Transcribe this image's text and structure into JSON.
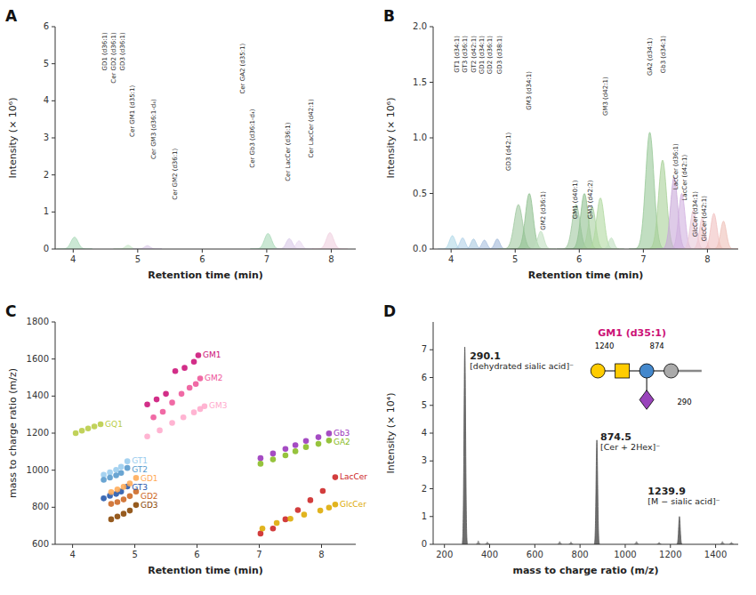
{
  "chart_data": [
    {
      "type": "peak",
      "title": "A",
      "x_label": "Retention time (min)",
      "y_label": "Intensity (× 10⁶)",
      "x": [
        4.02,
        4.85,
        5.15,
        7.02,
        7.35,
        7.5,
        7.98
      ],
      "values": [
        0.32,
        0.1,
        0.09,
        0.42,
        0.28,
        0.22,
        0.44
      ],
      "widths": [
        0.055,
        0.045,
        0.045,
        0.055,
        0.048,
        0.045,
        0.055
      ],
      "colors": [
        "#a8d8b8",
        "#c8e8c8",
        "#d8c8e8",
        "#a8d8b8",
        "#d8c8e8",
        "#e8d8f0",
        "#f0d0e0"
      ],
      "xlim": [
        3.72,
        8.38
      ],
      "ylim": [
        0,
        6
      ],
      "xticks": [
        4,
        5,
        6,
        7,
        8
      ],
      "yticks": [
        0,
        1,
        2,
        3,
        4,
        5,
        6
      ],
      "grid": false,
      "annotations": [
        {
          "text": "GD1 (d36:1)",
          "x": 4.44,
          "y": 5.85
        },
        {
          "text": "Cer GD2 (d36:1)",
          "x": 4.58,
          "y": 5.85
        },
        {
          "text": "GD3 (d36:1)",
          "x": 4.72,
          "y": 5.85
        },
        {
          "text": "Cer GM1 (d35:1)",
          "x": 4.86,
          "y": 4.42
        },
        {
          "text": "Cer GM3 (d36:1-d₄)",
          "x": 5.2,
          "y": 4.05
        },
        {
          "text": "Cer GM2 (d36:1)",
          "x": 5.52,
          "y": 2.72
        },
        {
          "text": "Cer GA2 (d35:1)",
          "x": 6.58,
          "y": 5.55
        },
        {
          "text": "Cer Gb3 (d36:1-d₄)",
          "x": 6.72,
          "y": 3.78
        },
        {
          "text": "Cer LacCer (d36:1)",
          "x": 7.28,
          "y": 3.42
        },
        {
          "text": "Cer LacCer (d42:1)",
          "x": 7.63,
          "y": 4.05
        }
      ]
    },
    {
      "type": "peak",
      "title": "B",
      "x_label": "Retention time (min)",
      "y_label": "Intensity (× 10⁶)",
      "x": [
        4.02,
        4.18,
        4.35,
        4.52,
        4.72,
        5.05,
        5.22,
        5.4,
        5.95,
        6.08,
        6.2,
        6.33,
        6.5,
        7.1,
        7.3,
        7.48,
        7.6,
        7.78,
        7.92,
        8.1,
        8.25
      ],
      "values": [
        0.12,
        0.1,
        0.09,
        0.08,
        0.09,
        0.4,
        0.5,
        0.16,
        0.4,
        0.5,
        0.38,
        0.46,
        0.1,
        1.05,
        0.8,
        0.65,
        0.5,
        0.35,
        0.28,
        0.32,
        0.25
      ],
      "widths": [
        0.045,
        0.042,
        0.04,
        0.04,
        0.04,
        0.065,
        0.06,
        0.048,
        0.06,
        0.058,
        0.055,
        0.058,
        0.04,
        0.065,
        0.062,
        0.055,
        0.05,
        0.048,
        0.045,
        0.048,
        0.045
      ],
      "colors": [
        "#b0d8e8",
        "#b0d0e8",
        "#a8c8e0",
        "#a8c0e0",
        "#a0b8d8",
        "#a0c8a0",
        "#90c090",
        "#c0e0c0",
        "#a0c8a0",
        "#90c090",
        "#a8d0a0",
        "#b0d8a0",
        "#c0e0c0",
        "#98c898",
        "#a8d098",
        "#c8a8d8",
        "#d0b0e0",
        "#e8c8d8",
        "#f0c8d0",
        "#f0c0c0",
        "#eec0b8"
      ],
      "xlim": [
        3.72,
        8.48
      ],
      "ylim": [
        0,
        2.0
      ],
      "xticks": [
        4,
        5,
        6,
        7,
        8
      ],
      "yticks": [
        {
          "value": 0,
          "label": "0.0"
        },
        {
          "value": 0.5,
          "label": "0.5"
        },
        {
          "value": 1,
          "label": "1.0"
        },
        {
          "value": 1.5,
          "label": "1.5"
        },
        {
          "value": 2,
          "label": "2.0"
        }
      ],
      "grid": false,
      "annotations": [
        {
          "text": "GT1 (d34:1)",
          "x": 4.04,
          "y": 1.92
        },
        {
          "text": "GT3 (d36:1)",
          "x": 4.17,
          "y": 1.92
        },
        {
          "text": "GT2 (d42:1)",
          "x": 4.3,
          "y": 1.92
        },
        {
          "text": "GD1 (d34:1)",
          "x": 4.43,
          "y": 1.92
        },
        {
          "text": "GD2 (d36:1)",
          "x": 4.56,
          "y": 1.92
        },
        {
          "text": "GD3 (d38:1)",
          "x": 4.7,
          "y": 1.92
        },
        {
          "text": "GD3 (d42:1)",
          "x": 4.84,
          "y": 1.05
        },
        {
          "text": "GM3 (d34:1)",
          "x": 5.16,
          "y": 1.6
        },
        {
          "text": "GM2 (d36:1)",
          "x": 5.38,
          "y": 0.52
        },
        {
          "text": "GM1 (d40:1)",
          "x": 5.88,
          "y": 0.62
        },
        {
          "text": "GM3 (d42:2)",
          "x": 6.12,
          "y": 0.62
        },
        {
          "text": "GM3 (d42:1)",
          "x": 6.36,
          "y": 1.55
        },
        {
          "text": "GA2 (d34:1)",
          "x": 7.05,
          "y": 1.9
        },
        {
          "text": "Gb3 (d34:1)",
          "x": 7.26,
          "y": 1.92
        },
        {
          "text": "LacCer (d36:1)",
          "x": 7.46,
          "y": 0.95
        },
        {
          "text": "LacCer (d42:1)",
          "x": 7.59,
          "y": 0.85
        },
        {
          "text": "GlcCer (d34:1)",
          "x": 7.76,
          "y": 0.52
        },
        {
          "text": "GlcCer (d42:1)",
          "x": 7.9,
          "y": 0.48
        }
      ]
    },
    {
      "type": "scatter",
      "title": "C",
      "x_label": "Retention time (min)",
      "y_label": "mass to charge ratio (m/z)",
      "series": [
        {
          "name": "GQ1",
          "color": "#b8cc44",
          "x": [
            4.05,
            4.15,
            4.25,
            4.35,
            4.45
          ],
          "values": [
            1200,
            1213,
            1225,
            1236,
            1248
          ]
        },
        {
          "name": "GT1",
          "color": "#99ccee",
          "x": [
            4.5,
            4.6,
            4.7,
            4.78,
            4.88
          ],
          "values": [
            975,
            988,
            1002,
            1018,
            1048
          ]
        },
        {
          "name": "GT2",
          "color": "#5599cc",
          "x": [
            4.5,
            4.6,
            4.7,
            4.78,
            4.88
          ],
          "values": [
            948,
            960,
            972,
            985,
            1012
          ]
        },
        {
          "name": "GT3",
          "color": "#2255aa",
          "x": [
            4.5,
            4.6,
            4.7,
            4.78,
            4.88
          ],
          "values": [
            848,
            862,
            872,
            885,
            912
          ]
        },
        {
          "name": "GD1",
          "color": "#ffaa55",
          "x": [
            4.62,
            4.72,
            4.82,
            4.92,
            5.02
          ],
          "values": [
            882,
            896,
            910,
            928,
            958
          ]
        },
        {
          "name": "GD2",
          "color": "#cc6622",
          "x": [
            4.62,
            4.72,
            4.82,
            4.92,
            5.02
          ],
          "values": [
            818,
            828,
            842,
            860,
            885
          ]
        },
        {
          "name": "GD3",
          "color": "#884400",
          "x": [
            4.62,
            4.72,
            4.82,
            4.92,
            5.02
          ],
          "values": [
            735,
            750,
            765,
            782,
            812
          ]
        },
        {
          "name": "GM1",
          "color": "#cc1177",
          "x": [
            5.2,
            5.35,
            5.5,
            5.65,
            5.8,
            5.95,
            6.02
          ],
          "values": [
            1355,
            1382,
            1412,
            1535,
            1552,
            1585,
            1620
          ]
        },
        {
          "name": "GM2",
          "color": "#ee5599",
          "x": [
            5.3,
            5.45,
            5.6,
            5.75,
            5.88,
            5.98,
            6.05
          ],
          "values": [
            1285,
            1315,
            1365,
            1412,
            1445,
            1465,
            1495
          ]
        },
        {
          "name": "GM3",
          "color": "#ffaacc",
          "x": [
            5.2,
            5.4,
            5.6,
            5.78,
            5.95,
            6.05,
            6.12
          ],
          "values": [
            1182,
            1215,
            1255,
            1285,
            1312,
            1330,
            1345
          ]
        },
        {
          "name": "Gb3",
          "color": "#9933bb",
          "x": [
            7.02,
            7.22,
            7.42,
            7.58,
            7.75,
            7.95,
            8.12
          ],
          "values": [
            1065,
            1090,
            1115,
            1135,
            1158,
            1178,
            1198
          ]
        },
        {
          "name": "GA2",
          "color": "#88bb22",
          "x": [
            7.02,
            7.22,
            7.42,
            7.58,
            7.75,
            7.95,
            8.12
          ],
          "values": [
            1035,
            1058,
            1080,
            1102,
            1125,
            1142,
            1160
          ]
        },
        {
          "name": "LacCer",
          "color": "#cc2222",
          "x": [
            7.02,
            7.22,
            7.42,
            7.62,
            7.82,
            8.02,
            8.22
          ],
          "values": [
            658,
            685,
            735,
            785,
            838,
            888,
            962
          ]
        },
        {
          "name": "GlcCer",
          "color": "#ddaa00",
          "x": [
            7.05,
            7.28,
            7.5,
            7.72,
            7.98,
            8.12,
            8.22
          ],
          "values": [
            685,
            715,
            738,
            760,
            782,
            798,
            815
          ]
        }
      ],
      "xlim": [
        3.72,
        8.55
      ],
      "ylim": [
        600,
        1800
      ],
      "xticks": [
        4,
        5,
        6,
        7,
        8
      ],
      "yticks": [
        600,
        800,
        1000,
        1200,
        1400,
        1600,
        1800
      ],
      "grid": false
    },
    {
      "type": "peak",
      "title": "D",
      "x_label": "mass to charge ratio (m/z)",
      "y_label": "Intensity (× 10⁴)",
      "series": [
        {
          "color": "#555555",
          "x": [
            290.1,
            874.5,
            1239.9
          ],
          "values": [
            7.1,
            3.75,
            1.0
          ],
          "width": 3.5
        },
        {
          "color": "#888888",
          "x": [
            350,
            390,
            710,
            760,
            1050,
            1150,
            1430,
            1470
          ],
          "values": [
            0.12,
            0.08,
            0.1,
            0.08,
            0.1,
            0.07,
            0.1,
            0.07
          ],
          "width": 3
        }
      ],
      "xlim": [
        150,
        1500
      ],
      "ylim": [
        0,
        8
      ],
      "xticks": [
        200,
        400,
        600,
        800,
        1000,
        1200,
        1400
      ],
      "yticks": [
        0,
        1,
        2,
        3,
        4,
        5,
        6,
        7
      ],
      "grid": false,
      "annotations": [
        {
          "text": "290.1",
          "x": 312,
          "y": 6.9
        },
        {
          "text": "[dehydrated sialic acid]⁻",
          "x": 312,
          "y": 6.52
        },
        {
          "text": "874.5",
          "x": 890,
          "y": 4.0
        },
        {
          "text": "[Cer + 2Hex]⁻",
          "x": 890,
          "y": 3.62
        },
        {
          "text": "1239.9",
          "x": 1100,
          "y": 2.05
        },
        {
          "text": "[M − sialic acid]⁻",
          "x": 1100,
          "y": 1.68
        }
      ],
      "inset_title": "GM1 (d35:1)",
      "inset_color": "#cc1177",
      "inset_labels": [
        "1240",
        "874",
        "290"
      ]
    }
  ]
}
